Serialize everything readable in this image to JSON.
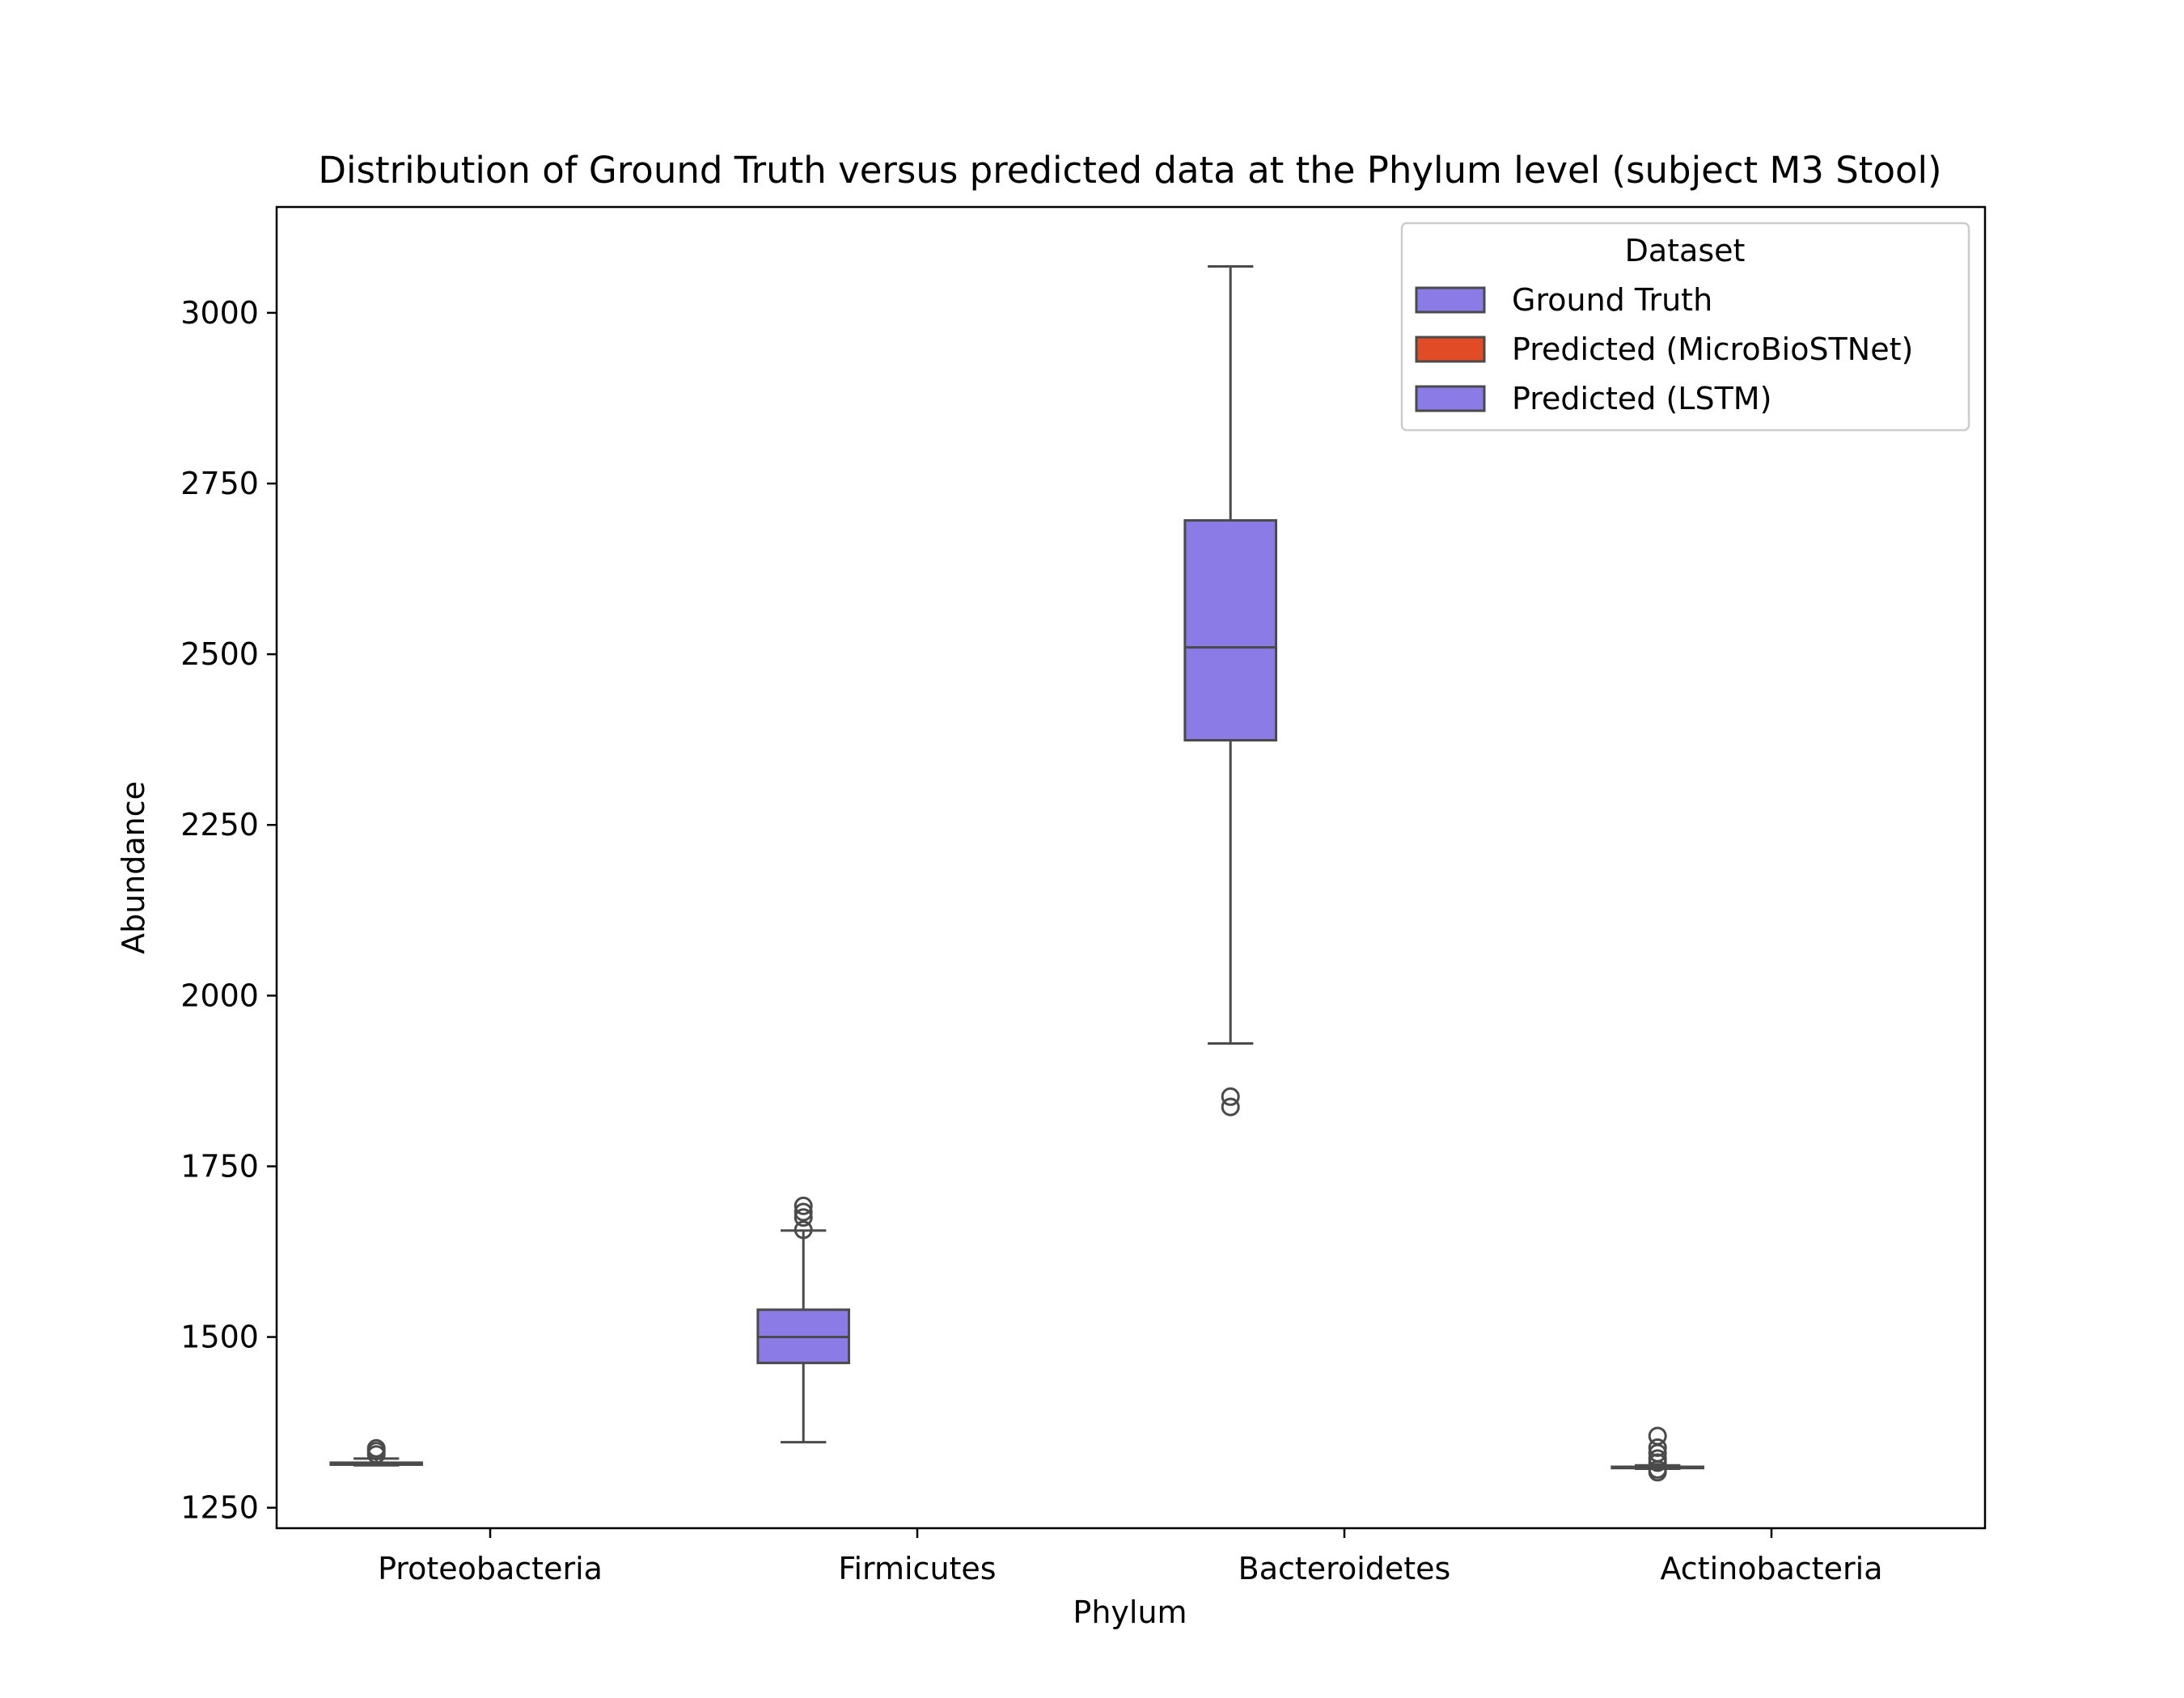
{
  "chart_data": {
    "type": "box",
    "title": "Distribution of Ground Truth versus predicted data at the Phylum level (subject M3 Stool)",
    "xlabel": "Phylum",
    "ylabel": "Abundance",
    "ylim": [
      1220,
      3155
    ],
    "yticks": [
      1250,
      1500,
      1750,
      2000,
      2250,
      2500,
      2750,
      3000
    ],
    "categories": [
      "Proteobacteria",
      "Firmicutes",
      "Bacteroidetes",
      "Actinobacteria"
    ],
    "legend": {
      "title": "Dataset",
      "position": "top-right",
      "entries": [
        {
          "name": "Ground Truth",
          "color": "#8a7be6"
        },
        {
          "name": "Predicted (MicroBioSTNet)",
          "color": "#e14b25"
        },
        {
          "name": "Predicted (LSTM)",
          "color": "#8a7be6"
        }
      ]
    },
    "grid": false,
    "series": [
      {
        "name": "Ground Truth",
        "color": "#8a7be6",
        "boxes": [
          {
            "category": "Proteobacteria",
            "whisker_low": 1312,
            "q1": 1313,
            "median": 1314,
            "q3": 1316,
            "whisker_high": 1322,
            "outliers": [
              1328,
              1333,
              1337
            ]
          },
          {
            "category": "Firmicutes",
            "whisker_low": 1346,
            "q1": 1462,
            "median": 1500,
            "q3": 1540,
            "whisker_high": 1656,
            "outliers": [
              1657,
              1675,
              1683,
              1692
            ]
          },
          {
            "category": "Bacteroidetes",
            "whisker_low": 1930,
            "q1": 2374,
            "median": 2510,
            "q3": 2696,
            "whisker_high": 3068,
            "outliers": [
              1852,
              1837
            ]
          },
          {
            "category": "Actinobacteria",
            "whisker_low": 1307,
            "q1": 1308,
            "median": 1309,
            "q3": 1310,
            "whisker_high": 1312,
            "outliers": [
              1302,
              1306,
              1316,
              1322,
              1330,
              1338,
              1355
            ]
          }
        ]
      }
    ]
  }
}
